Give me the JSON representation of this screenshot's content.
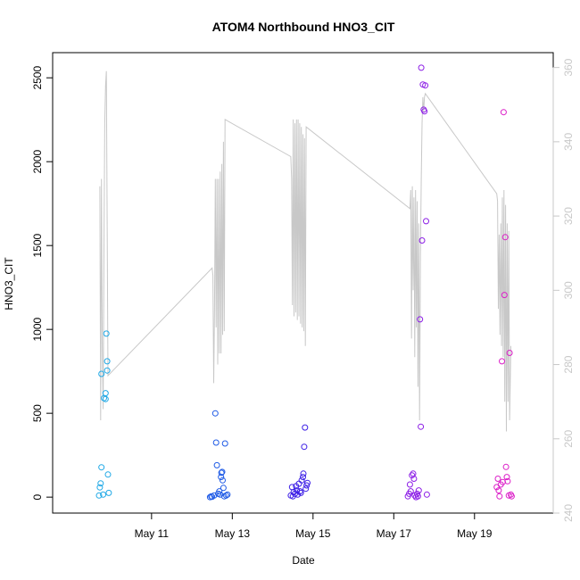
{
  "chart_data": {
    "type": "scatter",
    "title": "ATOM4 Northbound HNO3_CIT",
    "xlabel": "Date",
    "ylabel": "HNO3_CIT",
    "x_unit": "days since May 9 00:00",
    "xlim": [
      8.55,
      20.95
    ],
    "ylim": [
      -95,
      2650
    ],
    "y2lim": [
      240,
      364
    ],
    "x_ticks": [
      {
        "value": 11,
        "label": "May 11"
      },
      {
        "value": 13,
        "label": "May 13"
      },
      {
        "value": 15,
        "label": "May 15"
      },
      {
        "value": 17,
        "label": "May 17"
      },
      {
        "value": 19,
        "label": "May 19"
      }
    ],
    "y_ticks": [
      0,
      500,
      1000,
      1500,
      2000,
      2500
    ],
    "y2_ticks": [
      240,
      260,
      280,
      300,
      320,
      340,
      360
    ],
    "grid": false,
    "colors": {
      "flight1": "#1ea8e6",
      "flight2": "#1e5ae6",
      "flight3": "#3c1ee6",
      "flight4": "#8c1ee6",
      "flight5": "#dc1ec8",
      "line": "#c8c8c8"
    },
    "scatter_series": [
      {
        "color_key": "flight1",
        "points": [
          [
            9.7,
            10
          ],
          [
            9.72,
            58
          ],
          [
            9.74,
            82
          ],
          [
            9.76,
            178
          ],
          [
            9.8,
            15
          ],
          [
            9.82,
            590
          ],
          [
            9.76,
            735
          ],
          [
            9.86,
            620
          ],
          [
            9.86,
            585
          ],
          [
            9.88,
            975
          ],
          [
            9.9,
            810
          ],
          [
            9.9,
            755
          ],
          [
            9.92,
            135
          ],
          [
            9.94,
            25
          ]
        ]
      },
      {
        "color_key": "flight2",
        "points": [
          [
            12.45,
            0
          ],
          [
            12.48,
            5
          ],
          [
            12.5,
            2
          ],
          [
            12.55,
            10
          ],
          [
            12.58,
            500
          ],
          [
            12.6,
            325
          ],
          [
            12.62,
            190
          ],
          [
            12.65,
            20
          ],
          [
            12.68,
            35
          ],
          [
            12.7,
            15
          ],
          [
            12.72,
            120
          ],
          [
            12.73,
            145
          ],
          [
            12.75,
            150
          ],
          [
            12.76,
            100
          ],
          [
            12.78,
            55
          ],
          [
            12.8,
            5
          ],
          [
            12.82,
            320
          ],
          [
            12.85,
            10
          ],
          [
            12.88,
            15
          ]
        ]
      },
      {
        "color_key": "flight3",
        "points": [
          [
            14.45,
            10
          ],
          [
            14.48,
            60
          ],
          [
            14.5,
            5
          ],
          [
            14.52,
            30
          ],
          [
            14.55,
            20
          ],
          [
            14.58,
            65
          ],
          [
            14.6,
            40
          ],
          [
            14.62,
            15
          ],
          [
            14.65,
            80
          ],
          [
            14.68,
            35
          ],
          [
            14.7,
            25
          ],
          [
            14.72,
            100
          ],
          [
            14.75,
            120
          ],
          [
            14.76,
            140
          ],
          [
            14.78,
            300
          ],
          [
            14.8,
            415
          ],
          [
            14.82,
            50
          ],
          [
            14.84,
            70
          ],
          [
            14.86,
            85
          ]
        ]
      },
      {
        "color_key": "flight4",
        "points": [
          [
            17.35,
            5
          ],
          [
            17.38,
            20
          ],
          [
            17.4,
            75
          ],
          [
            17.42,
            35
          ],
          [
            17.45,
            130
          ],
          [
            17.48,
            140
          ],
          [
            17.5,
            110
          ],
          [
            17.52,
            10
          ],
          [
            17.55,
            0
          ],
          [
            17.58,
            20
          ],
          [
            17.6,
            5
          ],
          [
            17.62,
            40
          ],
          [
            17.65,
            1060
          ],
          [
            17.67,
            420
          ],
          [
            17.68,
            2560
          ],
          [
            17.7,
            1530
          ],
          [
            17.72,
            2460
          ],
          [
            17.74,
            2310
          ],
          [
            17.76,
            2300
          ],
          [
            17.78,
            2455
          ],
          [
            17.8,
            1645
          ],
          [
            17.82,
            15
          ]
        ]
      },
      {
        "color_key": "flight5",
        "points": [
          [
            19.55,
            60
          ],
          [
            19.58,
            110
          ],
          [
            19.6,
            40
          ],
          [
            19.62,
            5
          ],
          [
            19.65,
            75
          ],
          [
            19.68,
            810
          ],
          [
            19.7,
            90
          ],
          [
            19.72,
            2295
          ],
          [
            19.74,
            1205
          ],
          [
            19.76,
            1550
          ],
          [
            19.78,
            180
          ],
          [
            19.8,
            120
          ],
          [
            19.82,
            95
          ],
          [
            19.85,
            10
          ],
          [
            19.87,
            860
          ],
          [
            19.9,
            15
          ],
          [
            19.92,
            5
          ]
        ]
      }
    ],
    "line_series": {
      "color_key": "line",
      "axis": "right",
      "points": [
        [
          9.72,
          328
        ],
        [
          9.74,
          265
        ],
        [
          9.76,
          330
        ],
        [
          9.78,
          285
        ],
        [
          9.8,
          268
        ],
        [
          9.82,
          310
        ],
        [
          9.84,
          345
        ],
        [
          9.86,
          355
        ],
        [
          9.88,
          359
        ],
        [
          9.92,
          277
        ],
        [
          12.5,
          306
        ],
        [
          12.52,
          304
        ],
        [
          12.54,
          275
        ],
        [
          12.56,
          295
        ],
        [
          12.58,
          330
        ],
        [
          12.6,
          290
        ],
        [
          12.62,
          330
        ],
        [
          12.64,
          280
        ],
        [
          12.66,
          330
        ],
        [
          12.68,
          283
        ],
        [
          12.7,
          332
        ],
        [
          12.72,
          283
        ],
        [
          12.74,
          334
        ],
        [
          12.76,
          288
        ],
        [
          12.78,
          340
        ],
        [
          12.8,
          289
        ],
        [
          12.82,
          346
        ],
        [
          14.45,
          336
        ],
        [
          14.47,
          330
        ],
        [
          14.49,
          296
        ],
        [
          14.51,
          346
        ],
        [
          14.53,
          293
        ],
        [
          14.55,
          345
        ],
        [
          14.57,
          294
        ],
        [
          14.59,
          346
        ],
        [
          14.61,
          292
        ],
        [
          14.63,
          346
        ],
        [
          14.65,
          293
        ],
        [
          14.67,
          345
        ],
        [
          14.69,
          291
        ],
        [
          14.71,
          344
        ],
        [
          14.73,
          290
        ],
        [
          14.75,
          342
        ],
        [
          14.77,
          289
        ],
        [
          14.79,
          341
        ],
        [
          14.81,
          285
        ],
        [
          14.83,
          344
        ],
        [
          17.4,
          322
        ],
        [
          17.42,
          327
        ],
        [
          17.44,
          287
        ],
        [
          17.46,
          328
        ],
        [
          17.48,
          300
        ],
        [
          17.5,
          325
        ],
        [
          17.52,
          282
        ],
        [
          17.54,
          327
        ],
        [
          17.56,
          290
        ],
        [
          17.58,
          324
        ],
        [
          17.6,
          274
        ],
        [
          17.62,
          318
        ],
        [
          17.64,
          265
        ],
        [
          17.66,
          310
        ],
        [
          17.68,
          330
        ],
        [
          17.7,
          345
        ],
        [
          17.72,
          352
        ],
        [
          17.74,
          348
        ],
        [
          17.76,
          352
        ],
        [
          17.78,
          353
        ],
        [
          19.55,
          326
        ],
        [
          19.57,
          324
        ],
        [
          19.59,
          295
        ],
        [
          19.61,
          315
        ],
        [
          19.63,
          288
        ],
        [
          19.65,
          318
        ],
        [
          19.67,
          285
        ],
        [
          19.69,
          325
        ],
        [
          19.71,
          282
        ],
        [
          19.73,
          327
        ],
        [
          19.75,
          270
        ],
        [
          19.77,
          323
        ],
        [
          19.79,
          262
        ],
        [
          19.81,
          318
        ],
        [
          19.83,
          270
        ],
        [
          19.85,
          316
        ],
        [
          19.87,
          265
        ],
        [
          19.9,
          285
        ]
      ]
    }
  }
}
